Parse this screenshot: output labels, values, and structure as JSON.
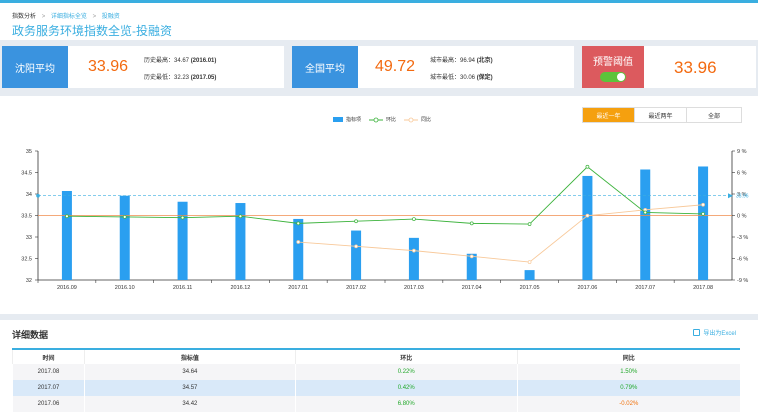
{
  "breadcrumb": {
    "items": [
      "指数分析",
      "详细指标全览",
      "投融资"
    ]
  },
  "page_title": "政务服务环境指数全览-投融资",
  "cards": {
    "shenyang": {
      "label": "沈阳平均",
      "value": "33.96",
      "hist_high_label": "历史最高：34.67",
      "hist_high_date": "(2016.01)",
      "hist_low_label": "历史最低：32.23",
      "hist_low_date": "(2017.05)"
    },
    "national": {
      "label": "全国平均",
      "value": "49.72",
      "city_high_label": "城市最高：96.94",
      "city_high_name": "(北京)",
      "city_low_label": "城市最低：30.06",
      "city_low_name": "(保定)"
    },
    "warning": {
      "label": "预警阈值",
      "value": "33.96",
      "toggle_on": true
    }
  },
  "range_buttons": [
    "最近一年",
    "最近两年",
    "全部"
  ],
  "legend": {
    "bar": "指标项",
    "mom": "环比",
    "yoy": "同比"
  },
  "colors": {
    "accent": "#3aaee0",
    "bar": "#2a9ff0",
    "mom": "#3db33d",
    "yoy": "#f8c99a",
    "threshold": "#f08c4e",
    "value": "#f36a10",
    "warning": "#dc5a5e"
  },
  "chart_data": {
    "type": "bar",
    "categories": [
      "2016.09",
      "2016.10",
      "2016.11",
      "2016.12",
      "2017.01",
      "2017.02",
      "2017.03",
      "2017.04",
      "2017.05",
      "2017.06",
      "2017.07",
      "2017.08"
    ],
    "series": [
      {
        "name": "指标项",
        "type": "bar",
        "axis": "left",
        "values": [
          34.07,
          33.96,
          33.82,
          33.79,
          33.42,
          33.15,
          32.98,
          32.61,
          32.23,
          34.42,
          34.57,
          34.64
        ]
      },
      {
        "name": "环比",
        "type": "line",
        "axis": "right",
        "values": [
          -0.1,
          -0.2,
          -0.3,
          -0.1,
          -1.1,
          -0.8,
          -0.5,
          -1.1,
          -1.2,
          6.8,
          0.42,
          0.22
        ]
      },
      {
        "name": "同比",
        "type": "line",
        "axis": "right",
        "values": [
          null,
          null,
          null,
          null,
          -3.7,
          -4.3,
          -4.9,
          -5.7,
          -6.5,
          -0.02,
          0.79,
          1.5
        ]
      }
    ],
    "left_ticks": [
      "32",
      "32.5",
      "33",
      "33.5",
      "34",
      "34.5",
      "35"
    ],
    "right_ticks": [
      "-9 %",
      "-6 %",
      "-3 %",
      "0 %",
      "3 %",
      "6 %",
      "9 %"
    ],
    "ylim_left": [
      32,
      35
    ],
    "ylim_right": [
      -9,
      9
    ],
    "threshold_value": 33.96,
    "threshold_label": "33.96"
  },
  "detail": {
    "title": "详细数据",
    "export_label": "导出为Excel",
    "columns": [
      "时间",
      "指标值",
      "环比",
      "同比"
    ],
    "rows": [
      {
        "time": "2017.08",
        "value": "34.64",
        "mom": "0.22%",
        "yoy": "1.50%",
        "yoy_neg": false
      },
      {
        "time": "2017.07",
        "value": "34.57",
        "mom": "0.42%",
        "yoy": "0.79%",
        "yoy_neg": false
      },
      {
        "time": "2017.06",
        "value": "34.42",
        "mom": "6.80%",
        "yoy": "-0.02%",
        "yoy_neg": true
      }
    ]
  }
}
